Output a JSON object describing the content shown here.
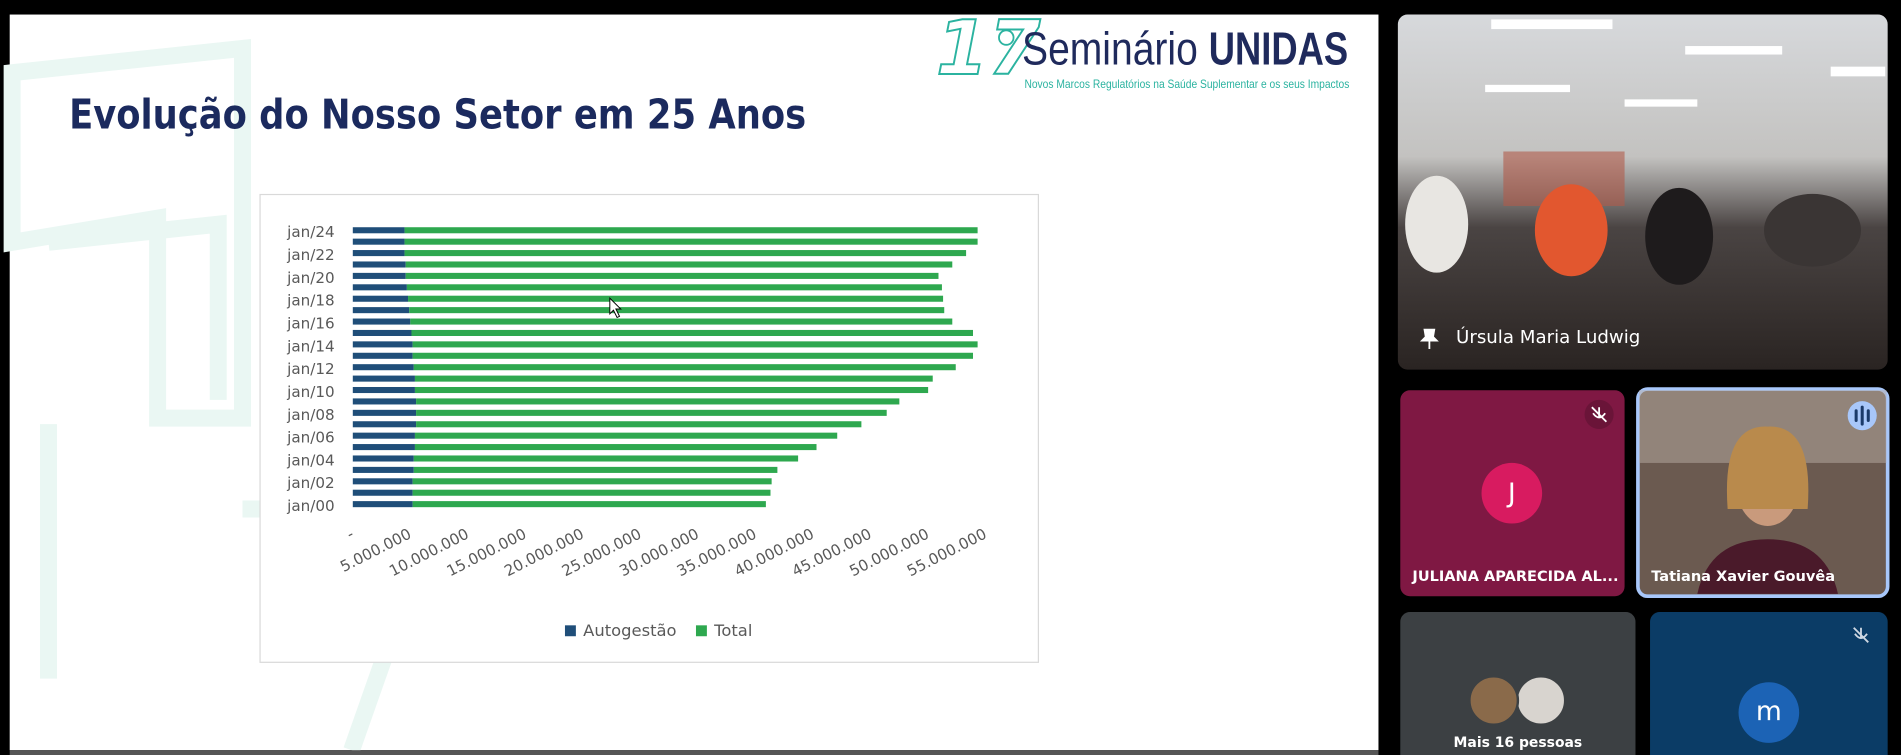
{
  "slide": {
    "logo": {
      "number": "17",
      "title": "Seminário",
      "brand": "UNIDAS",
      "subtitle": "Novos Marcos Regulatórios na Saúde Suplementar e os seus Impactos"
    },
    "title": "Evolução do Nosso Setor em 25 Anos"
  },
  "chart_data": {
    "type": "bar",
    "orientation": "horizontal",
    "stacked": true,
    "categories": [
      "jan/00",
      null,
      "jan/02",
      null,
      "jan/04",
      null,
      "jan/06",
      null,
      "jan/08",
      null,
      "jan/10",
      null,
      "jan/12",
      null,
      "jan/14",
      null,
      "jan/16",
      null,
      "jan/18",
      null,
      "jan/20",
      null,
      "jan/22",
      null,
      "jan/24"
    ],
    "series": [
      {
        "name": "Autogestão",
        "color": "#1f4e79",
        "values": [
          5200000,
          5200000,
          5200000,
          5300000,
          5300000,
          5400000,
          5400000,
          5500000,
          5500000,
          5500000,
          5400000,
          5400000,
          5300000,
          5200000,
          5200000,
          5100000,
          5000000,
          4900000,
          4800000,
          4700000,
          4600000,
          4600000,
          4500000,
          4500000,
          4500000
        ]
      },
      {
        "name": "Total",
        "color": "#2ea84f",
        "values": [
          30700000,
          31100000,
          31200000,
          31600000,
          33400000,
          34900000,
          36700000,
          38700000,
          40900000,
          42000000,
          44600000,
          45000000,
          47100000,
          48700000,
          49100000,
          48800000,
          47100000,
          46500000,
          46500000,
          46500000,
          46300000,
          47500000,
          48800000,
          49800000,
          49800000
        ]
      }
    ],
    "xlim": [
      0,
      55000000
    ],
    "xticks": [
      {
        "value": 0,
        "label": "-"
      },
      {
        "value": 5000000,
        "label": "5.000.000"
      },
      {
        "value": 10000000,
        "label": "10.000.000"
      },
      {
        "value": 15000000,
        "label": "15.000.000"
      },
      {
        "value": 20000000,
        "label": "20.000.000"
      },
      {
        "value": 25000000,
        "label": "25.000.000"
      },
      {
        "value": 30000000,
        "label": "30.000.000"
      },
      {
        "value": 35000000,
        "label": "35.000.000"
      },
      {
        "value": 40000000,
        "label": "40.000.000"
      },
      {
        "value": 45000000,
        "label": "45.000.000"
      },
      {
        "value": 50000000,
        "label": "50.000.000"
      },
      {
        "value": 55000000,
        "label": "55.000.000"
      }
    ],
    "grid": false,
    "legend": "bottom"
  },
  "participants": [
    {
      "name": "Úrsula Maria Ludwig"
    },
    {
      "initial": "J",
      "name": "JULIANA APARECIDA AL..."
    },
    {
      "name": "Tatiana Xavier Gouvêa"
    },
    {
      "name": "Mais 16 pessoas"
    },
    {
      "initial": "m"
    }
  ]
}
